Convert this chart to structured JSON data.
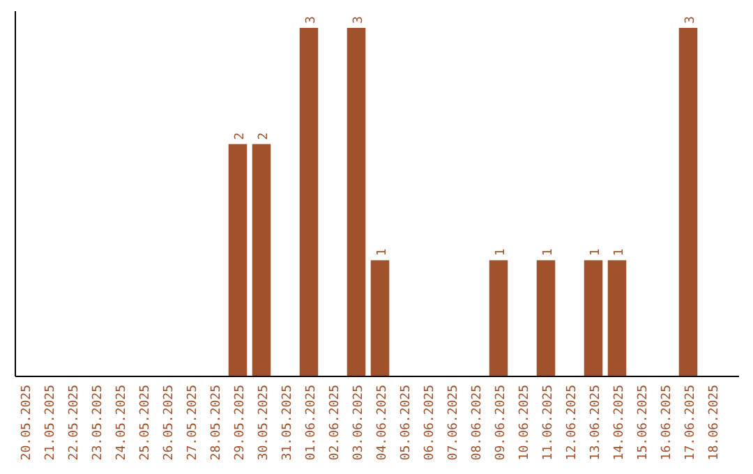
{
  "chart_data": {
    "type": "bar",
    "categories": [
      "20.05.2025",
      "21.05.2025",
      "22.05.2025",
      "23.05.2025",
      "24.05.2025",
      "25.05.2025",
      "26.05.2025",
      "27.05.2025",
      "28.05.2025",
      "29.05.2025",
      "30.05.2025",
      "31.05.2025",
      "01.06.2025",
      "02.06.2025",
      "03.06.2025",
      "04.06.2025",
      "05.06.2025",
      "06.06.2025",
      "07.06.2025",
      "08.06.2025",
      "09.06.2025",
      "10.06.2025",
      "11.06.2025",
      "12.06.2025",
      "13.06.2025",
      "14.06.2025",
      "15.06.2025",
      "16.06.2025",
      "17.06.2025",
      "18.06.2025"
    ],
    "values": [
      0,
      0,
      0,
      0,
      0,
      0,
      0,
      0,
      0,
      2,
      2,
      0,
      3,
      0,
      3,
      1,
      0,
      0,
      0,
      0,
      1,
      0,
      1,
      0,
      1,
      1,
      0,
      0,
      3,
      0
    ],
    "value_labels": [
      null,
      null,
      null,
      null,
      null,
      null,
      null,
      null,
      null,
      "2",
      "2",
      null,
      "3",
      null,
      "3",
      "1",
      null,
      null,
      null,
      null,
      "1",
      null,
      "1",
      null,
      "1",
      "1",
      null,
      null,
      "3",
      null
    ],
    "color": "#a0522d",
    "ylim": [
      0,
      3
    ],
    "tick_labels": "x"
  }
}
